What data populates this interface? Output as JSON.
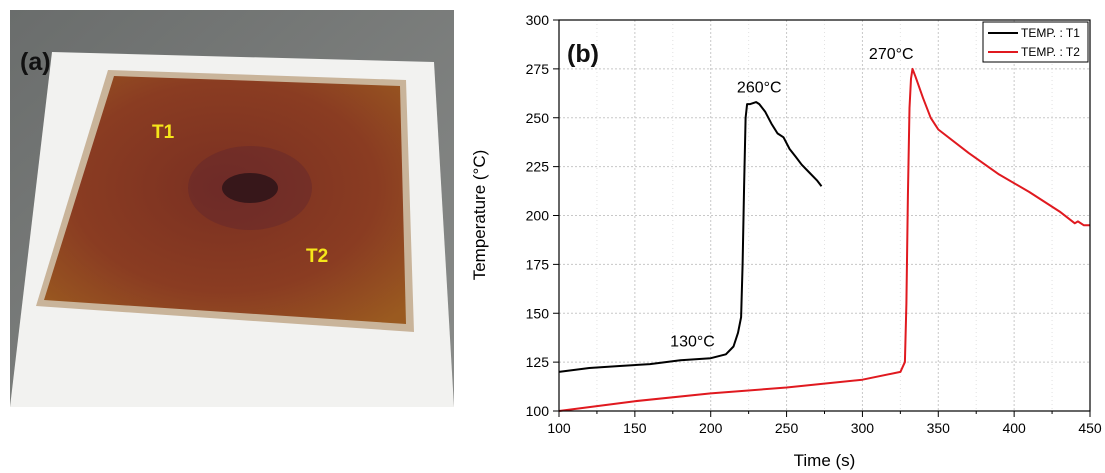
{
  "panel_a": {
    "label": "(a)",
    "markers": [
      "T1",
      "T2"
    ],
    "colors": {
      "label": "#111111",
      "marker": "#f5e61a",
      "pad": "#8a3a24",
      "base": "#f2f2f0",
      "background": "#6f7170"
    }
  },
  "chart_data": {
    "type": "line",
    "panel_label": "(b)",
    "xlabel": "Time (s)",
    "ylabel": "Temperature (°C)",
    "xlim": [
      100,
      450
    ],
    "ylim": [
      100,
      300
    ],
    "xticks": [
      100,
      150,
      200,
      250,
      300,
      350,
      400,
      450
    ],
    "yticks": [
      100,
      125,
      150,
      175,
      200,
      225,
      250,
      275,
      300
    ],
    "grid": true,
    "legend_position": "top-right",
    "series": [
      {
        "name": "TEMP. : T1",
        "color": "#000000",
        "x": [
          100,
          120,
          140,
          160,
          180,
          200,
          210,
          215,
          218,
          220,
          221,
          222,
          223,
          224,
          226,
          230,
          232,
          236,
          240,
          244,
          248,
          252,
          256,
          260,
          265,
          270,
          273
        ],
        "y": [
          120,
          122,
          123,
          124,
          126,
          127,
          129,
          133,
          140,
          148,
          175,
          215,
          250,
          257,
          257,
          258,
          257,
          253,
          247,
          242,
          240,
          234,
          230,
          226,
          222,
          218,
          215
        ]
      },
      {
        "name": "TEMP. : T2",
        "color": "#e0191f",
        "x": [
          100,
          150,
          200,
          250,
          300,
          325,
          328,
          329,
          330,
          331,
          332,
          333,
          335,
          340,
          345,
          350,
          370,
          390,
          410,
          430,
          440,
          442,
          446,
          450
        ],
        "y": [
          100,
          105,
          109,
          112,
          116,
          120,
          125,
          155,
          210,
          255,
          270,
          275,
          271,
          260,
          250,
          244,
          232,
          221,
          212,
          202,
          196,
          197,
          195,
          195
        ]
      }
    ],
    "annotations": [
      {
        "text": "260°C",
        "x": 232,
        "y": 263
      },
      {
        "text": "270°C",
        "x": 319,
        "y": 280
      },
      {
        "text": "130°C",
        "x": 188,
        "y": 133
      }
    ]
  }
}
